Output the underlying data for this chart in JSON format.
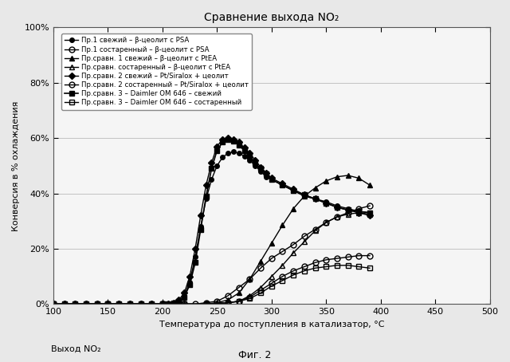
{
  "title": "Сравнение выхода NO₂",
  "xlabel": "Температура до поступления в катализатор, °C",
  "ylabel": "Конверсия в % охлаждения",
  "bottom_label": "Выход NO₂",
  "fig_label": "Фиг. 2",
  "xlim": [
    100,
    500
  ],
  "ylim": [
    0,
    1.0
  ],
  "xticks": [
    100,
    150,
    200,
    250,
    300,
    350,
    400,
    450,
    500
  ],
  "yticks": [
    0.0,
    0.2,
    0.4,
    0.6,
    0.8,
    1.0
  ],
  "ytick_labels": [
    "0%",
    "20%",
    "40%",
    "60%",
    "80%",
    "100%"
  ],
  "series": [
    {
      "label": "Пр.1 свежий – β-цеолит с PSA",
      "marker": "o",
      "fillstyle": "full",
      "markersize": 4,
      "color": "#000000",
      "linewidth": 1.0,
      "x": [
        100,
        110,
        120,
        130,
        140,
        150,
        160,
        170,
        180,
        190,
        200,
        205,
        210,
        215,
        220,
        225,
        230,
        235,
        240,
        245,
        250,
        255,
        260,
        265,
        270,
        275,
        280,
        285,
        290,
        295,
        300,
        310,
        320,
        330,
        340,
        350,
        360,
        370,
        380,
        390
      ],
      "y": [
        0,
        0,
        0,
        0,
        0,
        0,
        0,
        0,
        0,
        0,
        0,
        0,
        0.005,
        0.012,
        0.03,
        0.08,
        0.17,
        0.28,
        0.38,
        0.45,
        0.5,
        0.53,
        0.545,
        0.55,
        0.545,
        0.535,
        0.52,
        0.5,
        0.48,
        0.46,
        0.45,
        0.43,
        0.41,
        0.39,
        0.38,
        0.37,
        0.355,
        0.345,
        0.335,
        0.33
      ]
    },
    {
      "label": "Пр.1 состаренный – β-цеолит с PSA",
      "marker": "o",
      "fillstyle": "none",
      "markersize": 5,
      "color": "#000000",
      "linewidth": 1.0,
      "x": [
        100,
        110,
        120,
        130,
        140,
        150,
        160,
        170,
        180,
        190,
        200,
        210,
        220,
        230,
        240,
        250,
        260,
        270,
        280,
        290,
        300,
        310,
        320,
        330,
        340,
        350,
        360,
        370,
        380,
        390
      ],
      "y": [
        0,
        0,
        0,
        0,
        0,
        0,
        0,
        0,
        0,
        0,
        0,
        0,
        0,
        0,
        0.005,
        0.01,
        0.03,
        0.06,
        0.09,
        0.13,
        0.165,
        0.19,
        0.215,
        0.245,
        0.27,
        0.295,
        0.315,
        0.33,
        0.345,
        0.355
      ]
    },
    {
      "label": "Пр.сравн. 1 свежий – β-цеолит с PtEA",
      "marker": "^",
      "fillstyle": "full",
      "markersize": 5,
      "color": "#000000",
      "linewidth": 1.0,
      "x": [
        100,
        150,
        200,
        220,
        240,
        250,
        260,
        270,
        280,
        290,
        300,
        310,
        320,
        330,
        340,
        350,
        360,
        370,
        380,
        390
      ],
      "y": [
        0,
        0,
        0,
        0,
        0,
        0.005,
        0.015,
        0.04,
        0.09,
        0.155,
        0.22,
        0.285,
        0.345,
        0.39,
        0.42,
        0.445,
        0.46,
        0.465,
        0.455,
        0.43
      ]
    },
    {
      "label": "Пр.сравн. состаренный – β-цеолит с PtEA",
      "marker": "^",
      "fillstyle": "none",
      "markersize": 5,
      "color": "#000000",
      "linewidth": 1.0,
      "x": [
        100,
        150,
        200,
        240,
        260,
        270,
        280,
        290,
        300,
        310,
        320,
        330,
        340,
        350,
        360,
        370,
        380,
        390
      ],
      "y": [
        0,
        0,
        0,
        0,
        0.005,
        0.01,
        0.03,
        0.06,
        0.1,
        0.14,
        0.185,
        0.225,
        0.265,
        0.295,
        0.315,
        0.325,
        0.33,
        0.325
      ]
    },
    {
      "label": "Пр.сравн. 2 свежий – Pt/Siralox + цеолит",
      "marker": "D",
      "fillstyle": "full",
      "markersize": 4,
      "color": "#000000",
      "linewidth": 1.0,
      "x": [
        100,
        110,
        120,
        130,
        140,
        150,
        160,
        170,
        180,
        190,
        200,
        205,
        210,
        215,
        220,
        225,
        230,
        235,
        240,
        245,
        250,
        255,
        260,
        265,
        270,
        275,
        280,
        285,
        290,
        295,
        300,
        310,
        320,
        330,
        340,
        350,
        360,
        370,
        380,
        390
      ],
      "y": [
        0,
        0,
        0,
        0,
        0,
        0,
        0,
        0,
        0,
        0,
        0,
        0,
        0.005,
        0.015,
        0.04,
        0.1,
        0.2,
        0.32,
        0.43,
        0.51,
        0.57,
        0.595,
        0.6,
        0.595,
        0.585,
        0.565,
        0.545,
        0.52,
        0.495,
        0.475,
        0.455,
        0.435,
        0.415,
        0.395,
        0.38,
        0.365,
        0.35,
        0.34,
        0.33,
        0.32
      ]
    },
    {
      "label": "Пр.сравн. 2 состаренный – Pt/Siralox + цеолит",
      "marker": "o",
      "fillstyle": "none",
      "markersize": 5,
      "color": "#000000",
      "linewidth": 1.0,
      "x": [
        100,
        150,
        200,
        220,
        240,
        260,
        270,
        280,
        290,
        300,
        310,
        320,
        330,
        340,
        350,
        360,
        370,
        380,
        390
      ],
      "y": [
        0,
        0,
        0,
        0,
        0,
        0.005,
        0.01,
        0.025,
        0.05,
        0.075,
        0.1,
        0.12,
        0.135,
        0.15,
        0.16,
        0.165,
        0.17,
        0.175,
        0.175
      ]
    },
    {
      "label": "Пр.сравн. 3 – Daimler OM 646 – свежий",
      "marker": "s",
      "fillstyle": "full",
      "markersize": 5,
      "color": "#000000",
      "linewidth": 1.2,
      "x": [
        100,
        110,
        120,
        130,
        140,
        150,
        160,
        170,
        180,
        190,
        200,
        205,
        210,
        215,
        220,
        225,
        230,
        235,
        240,
        245,
        250,
        255,
        260,
        265,
        270,
        275,
        280,
        285,
        290,
        295,
        300,
        310,
        320,
        330,
        340,
        350,
        360,
        370,
        380,
        390
      ],
      "y": [
        0,
        0,
        0,
        0,
        0,
        0,
        0,
        0,
        0,
        0,
        0,
        0,
        0.005,
        0.01,
        0.025,
        0.07,
        0.15,
        0.27,
        0.39,
        0.49,
        0.555,
        0.585,
        0.595,
        0.59,
        0.575,
        0.555,
        0.535,
        0.51,
        0.49,
        0.47,
        0.45,
        0.43,
        0.41,
        0.395,
        0.38,
        0.365,
        0.35,
        0.34,
        0.335,
        0.33
      ]
    },
    {
      "label": "Пр.сравн. 3 – Daimler OM 646 – состаренный",
      "marker": "s",
      "fillstyle": "none",
      "markersize": 5,
      "color": "#000000",
      "linewidth": 1.0,
      "x": [
        100,
        150,
        200,
        220,
        240,
        260,
        270,
        280,
        290,
        300,
        310,
        320,
        330,
        340,
        350,
        360,
        370,
        380,
        390
      ],
      "y": [
        0,
        0,
        0,
        0,
        0,
        0.005,
        0.01,
        0.02,
        0.04,
        0.065,
        0.085,
        0.105,
        0.12,
        0.13,
        0.135,
        0.14,
        0.14,
        0.135,
        0.13
      ]
    }
  ],
  "background_color": "#e8e8e8",
  "plot_bg_color": "#f5f5f5"
}
